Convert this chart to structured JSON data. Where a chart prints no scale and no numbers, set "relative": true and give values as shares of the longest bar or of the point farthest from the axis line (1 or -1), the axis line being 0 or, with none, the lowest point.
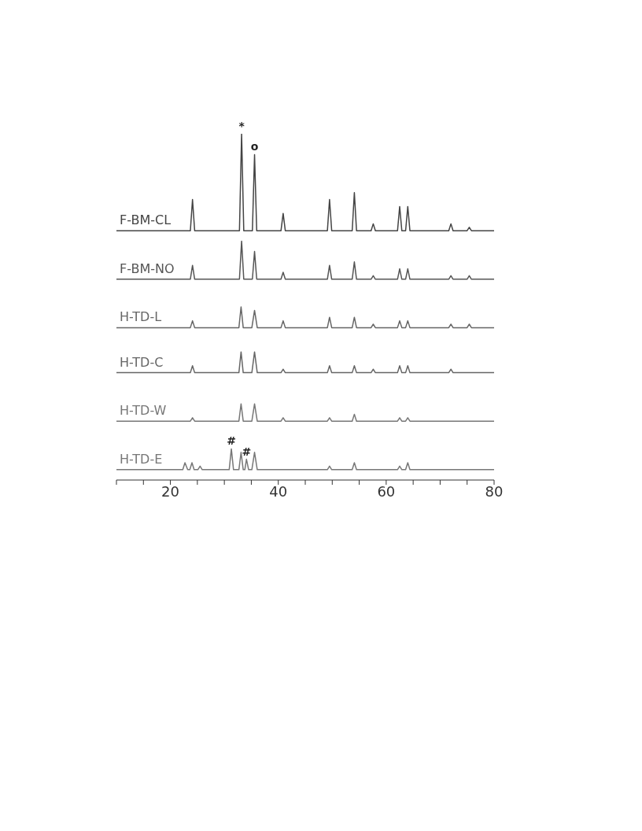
{
  "chart_data": {
    "type": "line",
    "relative": true,
    "xlim": [
      10,
      80
    ],
    "xticks": [
      {
        "value": 10,
        "label": null
      },
      {
        "value": 15,
        "label": null
      },
      20,
      {
        "value": 25,
        "label": null
      },
      {
        "value": 30,
        "label": null
      },
      {
        "value": 35,
        "label": null
      },
      40,
      {
        "value": 45,
        "label": null
      },
      {
        "value": 50,
        "label": null
      },
      {
        "value": 55,
        "label": null
      },
      60,
      {
        "value": 65,
        "label": null
      },
      {
        "value": 70,
        "label": null
      },
      {
        "value": 75,
        "label": null
      },
      80
    ],
    "grid": false,
    "annotations": [
      {
        "text": "*",
        "x": 33.2,
        "y": 1.0
      },
      {
        "text": "o",
        "x": 35.6,
        "y": 0.94
      },
      {
        "text": "#",
        "x": 31.3,
        "y": 0.09
      },
      {
        "text": "#",
        "x": 34.1,
        "y": 0.06
      }
    ],
    "series": [
      {
        "name": "F-BM-CL",
        "color": "#444444",
        "x": [
          10,
          23.7,
          24.1,
          24.5,
          32.8,
          33.2,
          33.6,
          35.2,
          35.6,
          36,
          40.5,
          40.9,
          41.3,
          49.1,
          49.5,
          49.9,
          53.7,
          54.1,
          54.5,
          57.2,
          57.6,
          58,
          62.1,
          62.5,
          62.9,
          63.6,
          64,
          64.4,
          71.6,
          72,
          72.4,
          75,
          75.4,
          75.8,
          80
        ],
        "values": [
          0.72,
          0.72,
          0.81,
          0.72,
          0.72,
          1.0,
          0.72,
          0.72,
          0.94,
          0.72,
          0.72,
          0.77,
          0.72,
          0.72,
          0.81,
          0.72,
          0.72,
          0.83,
          0.72,
          0.72,
          0.74,
          0.72,
          0.72,
          0.79,
          0.72,
          0.72,
          0.79,
          0.72,
          0.72,
          0.74,
          0.72,
          0.72,
          0.73,
          0.72,
          0.72
        ]
      },
      {
        "name": "F-BM-NO",
        "color": "#555555",
        "x": [
          10,
          23.7,
          24.1,
          24.5,
          32.8,
          33.2,
          33.6,
          35.2,
          35.6,
          36,
          40.5,
          40.9,
          41.3,
          49.1,
          49.5,
          49.9,
          53.7,
          54.1,
          54.5,
          57.2,
          57.6,
          58,
          62.1,
          62.5,
          62.9,
          63.6,
          64,
          64.4,
          71.6,
          72,
          72.4,
          75,
          75.4,
          75.8,
          80
        ],
        "values": [
          0.58,
          0.58,
          0.62,
          0.58,
          0.58,
          0.69,
          0.58,
          0.58,
          0.66,
          0.58,
          0.58,
          0.6,
          0.58,
          0.58,
          0.62,
          0.58,
          0.58,
          0.63,
          0.58,
          0.58,
          0.59,
          0.58,
          0.58,
          0.61,
          0.58,
          0.58,
          0.61,
          0.58,
          0.58,
          0.59,
          0.58,
          0.58,
          0.59,
          0.58,
          0.58
        ]
      },
      {
        "name": "H-TD-L",
        "color": "#666666",
        "x": [
          10,
          23.7,
          24.1,
          24.5,
          32.7,
          33.1,
          33.5,
          35.1,
          35.6,
          36.1,
          40.5,
          40.9,
          41.3,
          49.1,
          49.5,
          49.9,
          53.7,
          54.1,
          54.5,
          57.2,
          57.6,
          58,
          62.1,
          62.5,
          62.9,
          63.6,
          64,
          64.4,
          71.6,
          72,
          72.4,
          75,
          75.4,
          75.8,
          80
        ],
        "values": [
          0.44,
          0.44,
          0.46,
          0.44,
          0.44,
          0.5,
          0.44,
          0.44,
          0.49,
          0.44,
          0.44,
          0.46,
          0.44,
          0.44,
          0.47,
          0.44,
          0.44,
          0.47,
          0.44,
          0.44,
          0.45,
          0.44,
          0.44,
          0.46,
          0.44,
          0.44,
          0.46,
          0.44,
          0.44,
          0.45,
          0.44,
          0.44,
          0.45,
          0.44,
          0.44
        ]
      },
      {
        "name": "H-TD-C",
        "color": "#666666",
        "x": [
          10,
          23.7,
          24.1,
          24.5,
          32.7,
          33.1,
          33.5,
          35.1,
          35.6,
          36.1,
          40.5,
          40.9,
          41.3,
          49.1,
          49.5,
          49.9,
          53.7,
          54.1,
          54.5,
          57.2,
          57.6,
          58,
          62.1,
          62.5,
          62.9,
          63.6,
          64,
          64.4,
          71.6,
          72,
          72.4,
          80
        ],
        "values": [
          0.31,
          0.31,
          0.33,
          0.31,
          0.31,
          0.37,
          0.31,
          0.31,
          0.37,
          0.31,
          0.31,
          0.32,
          0.31,
          0.31,
          0.33,
          0.31,
          0.31,
          0.33,
          0.31,
          0.31,
          0.32,
          0.31,
          0.31,
          0.33,
          0.31,
          0.31,
          0.33,
          0.31,
          0.31,
          0.32,
          0.31,
          0.31
        ]
      },
      {
        "name": "H-TD-W",
        "color": "#777777",
        "x": [
          10,
          23.7,
          24.1,
          24.5,
          32.7,
          33.1,
          33.5,
          35.1,
          35.6,
          36.1,
          40.5,
          40.9,
          41.3,
          49.1,
          49.5,
          49.9,
          53.7,
          54.1,
          54.5,
          62.1,
          62.5,
          62.9,
          63.6,
          64,
          64.4,
          80
        ],
        "values": [
          0.17,
          0.17,
          0.18,
          0.17,
          0.17,
          0.22,
          0.17,
          0.17,
          0.22,
          0.17,
          0.17,
          0.18,
          0.17,
          0.17,
          0.18,
          0.17,
          0.17,
          0.19,
          0.17,
          0.17,
          0.18,
          0.17,
          0.17,
          0.18,
          0.17,
          0.17
        ]
      },
      {
        "name": "H-TD-E",
        "color": "#777777",
        "x": [
          10,
          22.3,
          22.7,
          23.2,
          23.6,
          24,
          24.4,
          25.1,
          25.5,
          25.9,
          30.9,
          31.3,
          31.7,
          32.7,
          33.1,
          33.5,
          33.8,
          34.1,
          34.5,
          35.1,
          35.6,
          36.1,
          49.1,
          49.5,
          49.9,
          53.7,
          54.1,
          54.5,
          62.1,
          62.5,
          62.9,
          63.6,
          64,
          64.4,
          80
        ],
        "values": [
          0.03,
          0.03,
          0.05,
          0.03,
          0.03,
          0.05,
          0.03,
          0.03,
          0.04,
          0.03,
          0.03,
          0.09,
          0.03,
          0.03,
          0.08,
          0.03,
          0.03,
          0.06,
          0.03,
          0.03,
          0.08,
          0.03,
          0.03,
          0.04,
          0.03,
          0.03,
          0.05,
          0.03,
          0.03,
          0.04,
          0.03,
          0.03,
          0.05,
          0.03,
          0.03
        ]
      }
    ]
  }
}
